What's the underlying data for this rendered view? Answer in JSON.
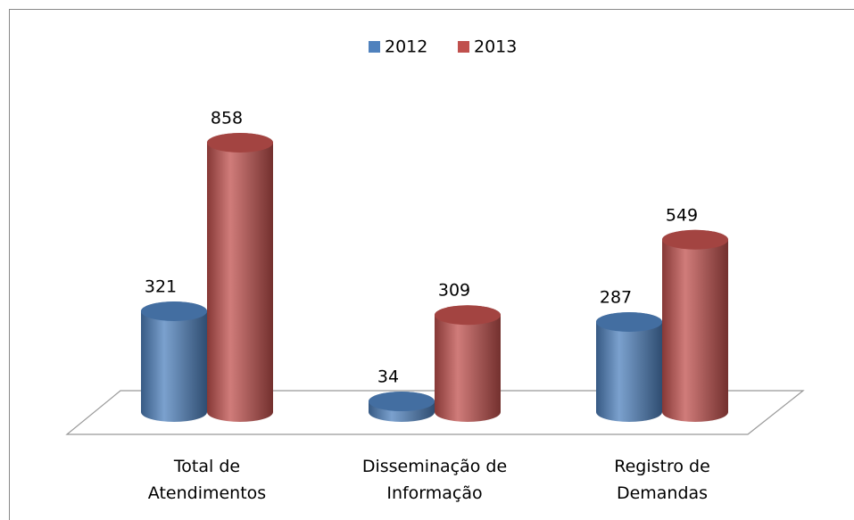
{
  "chart_data": {
    "type": "bar",
    "categories": [
      "Total de\nAtendimentos",
      "Disseminação de\nInformação",
      "Registro de\nDemandas"
    ],
    "series": [
      {
        "name": "2012",
        "color": "#4f81bd",
        "values": [
          321,
          34,
          287
        ]
      },
      {
        "name": "2013",
        "color": "#c0504d",
        "values": [
          858,
          309,
          549
        ]
      }
    ],
    "legend": "top"
  }
}
